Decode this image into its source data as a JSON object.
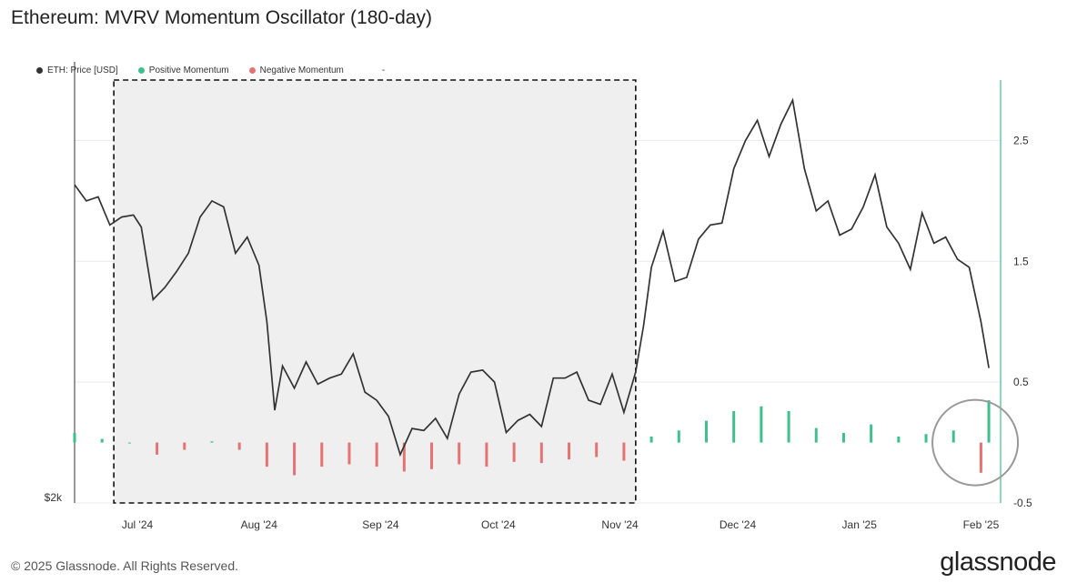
{
  "title": "Ethereum: MVRV Momentum Oscillator (180-day)",
  "legend": {
    "items": [
      {
        "label": "ETH: Price [USD]",
        "color": "#333333"
      },
      {
        "label": "Positive Momentum",
        "color": "#3fbf8c"
      },
      {
        "label": "Negative Momentum",
        "color": "#e57373"
      }
    ],
    "extra": "-"
  },
  "footer": "© 2025 Glassnode. All Rights Reserved.",
  "brand": "glassnode",
  "chart_data": {
    "type": "line",
    "x_ticks": [
      "Jul '24",
      "Aug '24",
      "Sep '24",
      "Oct '24",
      "Nov '24",
      "Dec '24",
      "Jan '25",
      "Feb '25"
    ],
    "y_left_ticks": [
      "$2k"
    ],
    "y_right_ticks": [
      "2.5",
      "1.5",
      "0.5",
      "-0.5"
    ],
    "y_right_range": [
      -0.5,
      3.0
    ],
    "y_left_range": [
      2000,
      4100
    ],
    "grid": true,
    "legend_position": "top-left",
    "highlight_period": {
      "start": "2024-06-25",
      "end": "2024-11-05"
    },
    "circle_annotation": {
      "near": "2025-02-03"
    },
    "colors": {
      "price": "#333333",
      "positive": "#3fbf8c",
      "negative": "#e57373",
      "highlight": "#efefef"
    },
    "price_series": {
      "name": "ETH: Price [USD]",
      "x": [
        "2024-06-15",
        "2024-06-18",
        "2024-06-21",
        "2024-06-24",
        "2024-06-27",
        "2024-06-30",
        "2024-07-02",
        "2024-07-05",
        "2024-07-08",
        "2024-07-11",
        "2024-07-14",
        "2024-07-17",
        "2024-07-20",
        "2024-07-23",
        "2024-07-26",
        "2024-07-29",
        "2024-08-01",
        "2024-08-03",
        "2024-08-05",
        "2024-08-07",
        "2024-08-10",
        "2024-08-13",
        "2024-08-16",
        "2024-08-19",
        "2024-08-22",
        "2024-08-25",
        "2024-08-28",
        "2024-08-31",
        "2024-09-03",
        "2024-09-06",
        "2024-09-09",
        "2024-09-12",
        "2024-09-15",
        "2024-09-18",
        "2024-09-21",
        "2024-09-24",
        "2024-09-27",
        "2024-09-30",
        "2024-10-03",
        "2024-10-06",
        "2024-10-09",
        "2024-10-12",
        "2024-10-15",
        "2024-10-18",
        "2024-10-21",
        "2024-10-24",
        "2024-10-27",
        "2024-10-30",
        "2024-11-02",
        "2024-11-05",
        "2024-11-07",
        "2024-11-09",
        "2024-11-12",
        "2024-11-15",
        "2024-11-18",
        "2024-11-21",
        "2024-11-24",
        "2024-11-27",
        "2024-11-30",
        "2024-12-03",
        "2024-12-06",
        "2024-12-09",
        "2024-12-12",
        "2024-12-15",
        "2024-12-18",
        "2024-12-21",
        "2024-12-24",
        "2024-12-27",
        "2024-12-30",
        "2025-01-02",
        "2025-01-05",
        "2025-01-08",
        "2025-01-11",
        "2025-01-14",
        "2025-01-17",
        "2025-01-20",
        "2025-01-23",
        "2025-01-26",
        "2025-01-29",
        "2025-02-01",
        "2025-02-03"
      ],
      "values": [
        3580,
        3500,
        3520,
        3380,
        3420,
        3430,
        3370,
        3010,
        3070,
        3150,
        3240,
        3420,
        3500,
        3470,
        3240,
        3320,
        3180,
        2900,
        2460,
        2680,
        2570,
        2700,
        2590,
        2620,
        2640,
        2740,
        2550,
        2510,
        2430,
        2240,
        2370,
        2360,
        2420,
        2320,
        2540,
        2650,
        2660,
        2600,
        2350,
        2410,
        2440,
        2380,
        2620,
        2620,
        2650,
        2510,
        2490,
        2640,
        2450,
        2650,
        2880,
        3170,
        3350,
        3100,
        3120,
        3310,
        3380,
        3390,
        3660,
        3800,
        3900,
        3720,
        3880,
        4000,
        3660,
        3450,
        3500,
        3330,
        3360,
        3470,
        3630,
        3370,
        3290,
        3160,
        3440,
        3290,
        3320,
        3210,
        3170,
        2900,
        2670
      ]
    },
    "momentum_series": {
      "name": "MVRV Momentum",
      "x": [
        "2024-06-15",
        "2024-06-22",
        "2024-06-29",
        "2024-07-06",
        "2024-07-13",
        "2024-07-20",
        "2024-07-27",
        "2024-08-03",
        "2024-08-10",
        "2024-08-17",
        "2024-08-24",
        "2024-08-31",
        "2024-09-07",
        "2024-09-14",
        "2024-09-21",
        "2024-09-28",
        "2024-10-05",
        "2024-10-12",
        "2024-10-19",
        "2024-10-26",
        "2024-11-02",
        "2024-11-09",
        "2024-11-16",
        "2024-11-23",
        "2024-11-30",
        "2024-12-07",
        "2024-12-14",
        "2024-12-21",
        "2024-12-28",
        "2025-01-04",
        "2025-01-11",
        "2025-01-18",
        "2025-01-25",
        "2025-02-01",
        "2025-02-03"
      ],
      "values": [
        0.08,
        0.03,
        0.0,
        -0.1,
        -0.06,
        0.01,
        -0.06,
        -0.2,
        -0.27,
        -0.2,
        -0.18,
        -0.2,
        -0.24,
        -0.22,
        -0.18,
        -0.2,
        -0.16,
        -0.17,
        -0.14,
        -0.12,
        -0.15,
        0.05,
        0.1,
        0.18,
        0.26,
        0.3,
        0.26,
        0.12,
        0.08,
        0.15,
        0.05,
        0.07,
        0.1,
        -0.25,
        0.35
      ]
    }
  }
}
